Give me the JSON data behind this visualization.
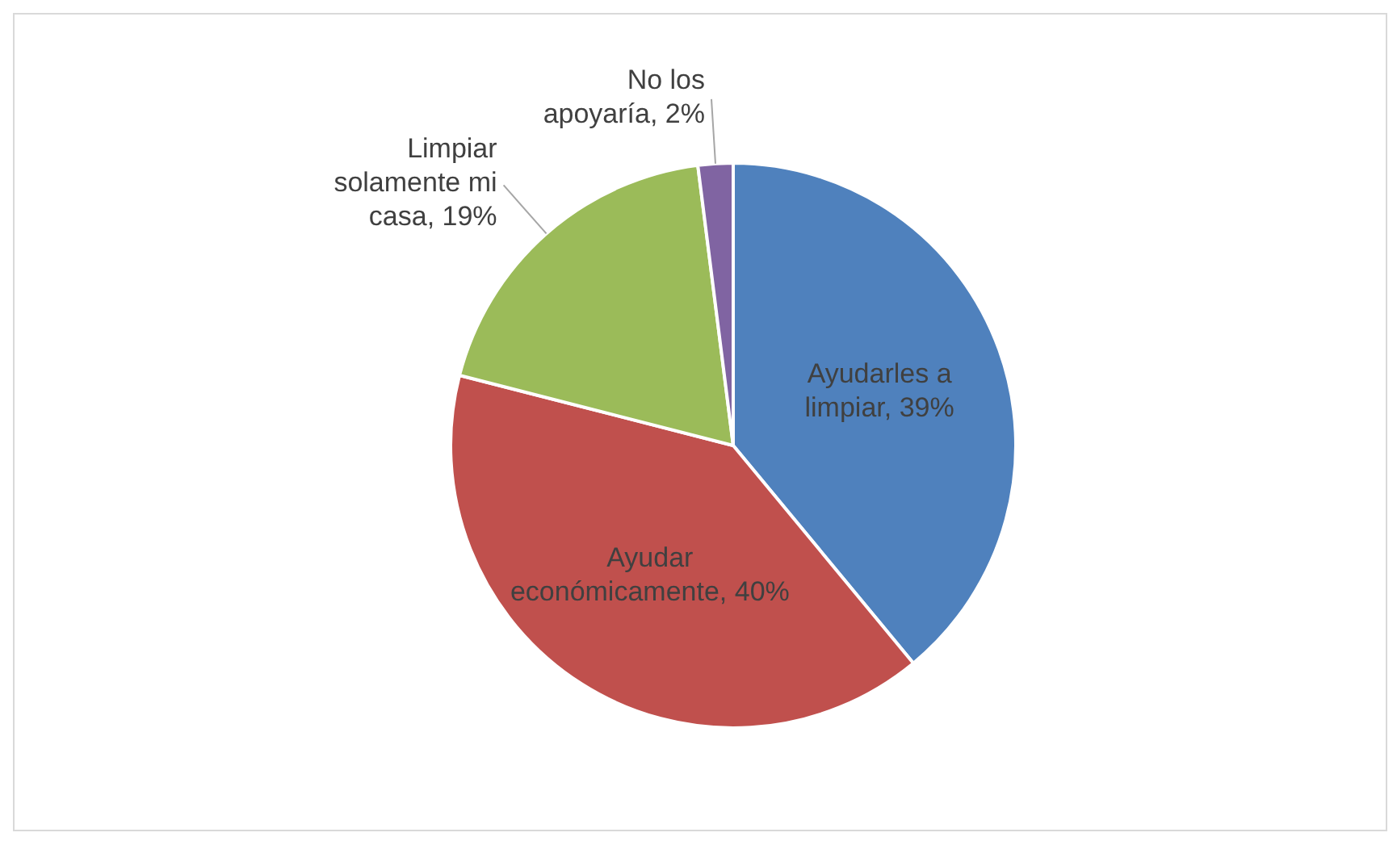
{
  "chart_data": {
    "type": "pie",
    "categories": [
      "Ayudarles a limpiar",
      "Ayudar económicamente",
      "Limpiar solamente mi casa",
      "No los apoyaría"
    ],
    "values": [
      39,
      40,
      19,
      2
    ],
    "value_labels": [
      "39%",
      "40%",
      "19%",
      "2%"
    ],
    "colors": [
      "#4f81bd",
      "#c0504d",
      "#9bbb59",
      "#8064a2"
    ]
  }
}
